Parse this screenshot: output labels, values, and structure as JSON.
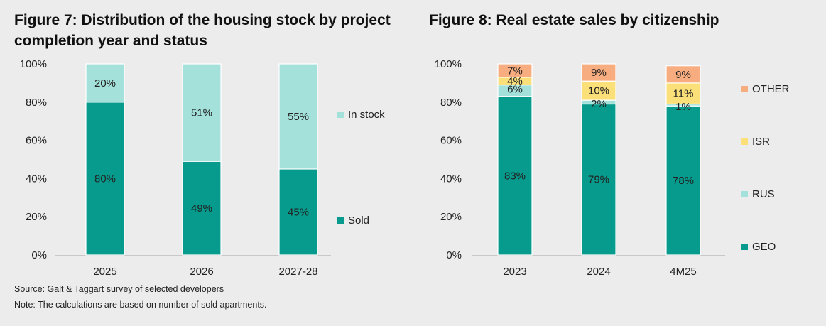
{
  "chart_data": [
    {
      "type": "bar",
      "stacked": true,
      "title": "Figure 7:  Distribution of the housing stock by project completion year and status",
      "categories": [
        "2025",
        "2026",
        "2027-28"
      ],
      "series": [
        {
          "name": "Sold",
          "values": [
            80,
            49,
            45
          ],
          "color": "#069b8c"
        },
        {
          "name": "In stock",
          "values": [
            20,
            51,
            55
          ],
          "color": "#a3e1da"
        }
      ],
      "ylim": [
        0,
        100
      ],
      "yticks": [
        "0%",
        "20%",
        "40%",
        "60%",
        "80%",
        "100%"
      ],
      "grid": false,
      "legend_position": "right"
    },
    {
      "type": "bar",
      "stacked": true,
      "title": "Figure 8:  Real estate sales by citizenship",
      "categories": [
        "2023",
        "2024",
        "4M25"
      ],
      "series": [
        {
          "name": "GEO",
          "values": [
            83,
            79,
            78
          ],
          "color": "#069b8c"
        },
        {
          "name": "RUS",
          "values": [
            6,
            2,
            1
          ],
          "color": "#a3e1da"
        },
        {
          "name": "ISR",
          "values": [
            4,
            10,
            11
          ],
          "color": "#fbe07a"
        },
        {
          "name": "OTHER",
          "values": [
            7,
            9,
            9
          ],
          "color": "#f7ad7f"
        }
      ],
      "ylim": [
        0,
        100
      ],
      "yticks": [
        "0%",
        "20%",
        "40%",
        "60%",
        "80%",
        "100%"
      ],
      "grid": false,
      "legend_position": "right"
    }
  ],
  "footer": {
    "source": "Source:  Galt & Taggart survey of selected developers",
    "note": "Note: The calculations are based on number of sold apartments."
  }
}
